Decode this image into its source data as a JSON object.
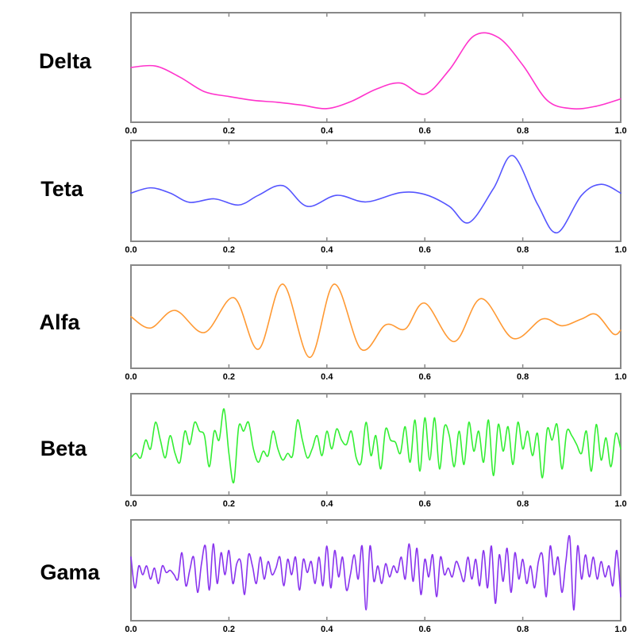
{
  "chart_data": [
    {
      "type": "line",
      "label": "Delta",
      "color": "#ff33cc",
      "xlim": [
        0.0,
        1.0
      ],
      "ylim": [
        -1,
        1
      ],
      "xticks": [
        "0.0",
        "0.2",
        "0.4",
        "0.6",
        "0.8",
        "1.0"
      ],
      "x": [
        0.0,
        0.05,
        0.1,
        0.15,
        0.2,
        0.25,
        0.3,
        0.35,
        0.4,
        0.45,
        0.5,
        0.55,
        0.6,
        0.65,
        0.7,
        0.75,
        0.8,
        0.85,
        0.9,
        0.95,
        1.0
      ],
      "y": [
        0.0,
        0.03,
        -0.2,
        -0.5,
        -0.6,
        -0.68,
        -0.72,
        -0.78,
        -0.85,
        -0.7,
        -0.45,
        -0.32,
        -0.55,
        -0.05,
        0.65,
        0.62,
        0.05,
        -0.68,
        -0.85,
        -0.8,
        -0.65
      ]
    },
    {
      "type": "line",
      "label": "Teta",
      "color": "#5555ff",
      "xlim": [
        0.0,
        1.0
      ],
      "ylim": [
        -1,
        1
      ],
      "xticks": [
        "0.0",
        "0.2",
        "0.4",
        "0.6",
        "0.8",
        "1.0"
      ],
      "x": [
        0.0,
        0.04,
        0.08,
        0.12,
        0.17,
        0.22,
        0.26,
        0.31,
        0.36,
        0.42,
        0.48,
        0.55,
        0.6,
        0.65,
        0.69,
        0.74,
        0.78,
        0.83,
        0.87,
        0.92,
        0.96,
        1.0
      ],
      "y": [
        -0.05,
        0.07,
        -0.05,
        -0.26,
        -0.18,
        -0.32,
        -0.1,
        0.12,
        -0.35,
        -0.1,
        -0.25,
        -0.04,
        -0.08,
        -0.35,
        -0.72,
        0.05,
        0.8,
        -0.3,
        -0.95,
        -0.1,
        0.15,
        -0.05
      ]
    },
    {
      "type": "line",
      "label": "Alfa",
      "color": "#ff9933",
      "xlim": [
        0.0,
        1.0
      ],
      "ylim": [
        -1,
        1
      ],
      "xticks": [
        "0.0",
        "0.2",
        "0.4",
        "0.6",
        "0.8",
        "1.0"
      ],
      "x": [
        0.0,
        0.04,
        0.09,
        0.15,
        0.21,
        0.26,
        0.31,
        0.365,
        0.415,
        0.47,
        0.52,
        0.56,
        0.6,
        0.66,
        0.715,
        0.78,
        0.84,
        0.88,
        0.92,
        0.95,
        0.985,
        1.0
      ],
      "y": [
        0.0,
        -0.25,
        0.14,
        -0.35,
        0.42,
        -0.72,
        0.72,
        -0.9,
        0.72,
        -0.72,
        -0.18,
        -0.27,
        0.3,
        -0.55,
        0.4,
        -0.48,
        -0.05,
        -0.2,
        -0.05,
        0.05,
        -0.38,
        -0.3
      ]
    },
    {
      "type": "line",
      "label": "Beta",
      "color": "#33ee33",
      "xlim": [
        0.0,
        1.0
      ],
      "ylim": [
        -1,
        1
      ],
      "xticks": [
        "0.0",
        "0.2",
        "0.4",
        "0.6",
        "0.8",
        "1.0"
      ],
      "x": [
        0.0,
        0.01,
        0.02,
        0.03,
        0.04,
        0.05,
        0.06,
        0.07,
        0.08,
        0.09,
        0.1,
        0.11,
        0.12,
        0.13,
        0.14,
        0.15,
        0.16,
        0.17,
        0.18,
        0.19,
        0.2,
        0.21,
        0.22,
        0.23,
        0.24,
        0.25,
        0.26,
        0.27,
        0.28,
        0.29,
        0.3,
        0.31,
        0.32,
        0.33,
        0.34,
        0.35,
        0.36,
        0.37,
        0.38,
        0.39,
        0.4,
        0.41,
        0.42,
        0.43,
        0.44,
        0.45,
        0.46,
        0.47,
        0.48,
        0.49,
        0.5,
        0.51,
        0.52,
        0.53,
        0.54,
        0.55,
        0.56,
        0.57,
        0.58,
        0.59,
        0.6,
        0.61,
        0.62,
        0.63,
        0.64,
        0.65,
        0.66,
        0.67,
        0.68,
        0.69,
        0.7,
        0.71,
        0.72,
        0.73,
        0.74,
        0.75,
        0.76,
        0.77,
        0.78,
        0.79,
        0.8,
        0.81,
        0.82,
        0.83,
        0.84,
        0.85,
        0.86,
        0.87,
        0.88,
        0.89,
        0.9,
        0.91,
        0.92,
        0.93,
        0.94,
        0.95,
        0.96,
        0.97,
        0.98,
        0.99,
        1.0
      ],
      "y": [
        -0.3,
        -0.2,
        -0.3,
        0.1,
        -0.1,
        0.5,
        0.1,
        -0.3,
        0.2,
        -0.2,
        -0.4,
        0.3,
        0.0,
        0.5,
        0.3,
        0.2,
        -0.5,
        0.3,
        0.1,
        0.8,
        -0.2,
        -0.85,
        0.4,
        0.3,
        0.5,
        -0.1,
        -0.4,
        -0.15,
        -0.25,
        0.3,
        -0.1,
        -0.35,
        -0.2,
        -0.25,
        0.55,
        0.1,
        -0.3,
        -0.1,
        0.2,
        -0.25,
        0.3,
        -0.1,
        0.35,
        0.1,
        0.0,
        0.3,
        -0.3,
        -0.4,
        0.5,
        -0.25,
        0.2,
        -0.55,
        0.35,
        0.1,
        0.05,
        -0.2,
        0.4,
        -0.4,
        0.55,
        -0.6,
        0.6,
        -0.35,
        0.6,
        -0.55,
        0.4,
        0.2,
        -0.5,
        0.3,
        -0.45,
        0.5,
        -0.15,
        0.3,
        -0.4,
        0.55,
        -0.7,
        0.45,
        -0.15,
        0.4,
        -0.45,
        0.5,
        -0.1,
        0.3,
        -0.25,
        0.25,
        -0.75,
        0.35,
        0.1,
        0.45,
        -0.55,
        0.3,
        0.2,
        0.0,
        -0.2,
        0.3,
        -0.6,
        0.45,
        -0.35,
        0.15,
        -0.5,
        0.25,
        -0.1
      ]
    },
    {
      "type": "line",
      "label": "Gama",
      "color": "#8833ee",
      "xlim": [
        0.0,
        1.0
      ],
      "ylim": [
        -1,
        1
      ],
      "xticks": [
        "0.0",
        "0.2",
        "0.4",
        "0.6",
        "0.8",
        "1.0"
      ],
      "x": [
        0.0,
        0.008,
        0.016,
        0.024,
        0.032,
        0.04,
        0.048,
        0.056,
        0.064,
        0.072,
        0.08,
        0.088,
        0.096,
        0.104,
        0.112,
        0.12,
        0.128,
        0.136,
        0.144,
        0.152,
        0.16,
        0.168,
        0.176,
        0.184,
        0.192,
        0.2,
        0.208,
        0.216,
        0.224,
        0.232,
        0.24,
        0.248,
        0.256,
        0.264,
        0.272,
        0.28,
        0.288,
        0.296,
        0.304,
        0.312,
        0.32,
        0.328,
        0.336,
        0.344,
        0.352,
        0.36,
        0.368,
        0.376,
        0.384,
        0.392,
        0.4,
        0.408,
        0.416,
        0.424,
        0.432,
        0.44,
        0.448,
        0.456,
        0.464,
        0.472,
        0.48,
        0.488,
        0.496,
        0.504,
        0.512,
        0.52,
        0.528,
        0.536,
        0.544,
        0.552,
        0.56,
        0.568,
        0.576,
        0.584,
        0.592,
        0.6,
        0.608,
        0.616,
        0.624,
        0.632,
        0.64,
        0.648,
        0.656,
        0.664,
        0.672,
        0.68,
        0.688,
        0.696,
        0.704,
        0.712,
        0.72,
        0.728,
        0.736,
        0.744,
        0.752,
        0.76,
        0.768,
        0.776,
        0.784,
        0.792,
        0.8,
        0.808,
        0.816,
        0.824,
        0.832,
        0.84,
        0.848,
        0.856,
        0.864,
        0.872,
        0.88,
        0.888,
        0.896,
        0.904,
        0.912,
        0.92,
        0.928,
        0.936,
        0.944,
        0.952,
        0.96,
        0.968,
        0.976,
        0.984,
        0.992,
        1.0
      ],
      "y": [
        0.3,
        -0.4,
        0.1,
        -0.1,
        0.1,
        -0.2,
        0.05,
        -0.3,
        0.1,
        -0.05,
        0.0,
        -0.1,
        -0.2,
        0.4,
        -0.35,
        0.0,
        0.3,
        -0.5,
        0.15,
        0.55,
        -0.45,
        0.6,
        -0.3,
        0.4,
        -0.1,
        0.45,
        -0.3,
        0.15,
        0.2,
        -0.55,
        0.35,
        0.1,
        -0.3,
        0.3,
        -0.2,
        0.2,
        -0.1,
        0.05,
        0.3,
        -0.35,
        0.25,
        -0.1,
        0.3,
        -0.45,
        0.25,
        -0.05,
        0.2,
        -0.3,
        0.3,
        -0.35,
        0.55,
        -0.4,
        0.45,
        -0.15,
        0.3,
        -0.45,
        -0.1,
        0.35,
        -0.2,
        0.55,
        -0.9,
        0.55,
        -0.25,
        0.1,
        -0.3,
        0.15,
        -0.15,
        0.1,
        -0.05,
        0.3,
        -0.2,
        0.6,
        -0.25,
        0.5,
        -0.55,
        0.25,
        -0.15,
        0.35,
        -0.6,
        0.3,
        -0.1,
        0.05,
        -0.15,
        0.2,
        0.0,
        -0.25,
        0.3,
        -0.2,
        0.25,
        -0.35,
        0.45,
        -0.4,
        0.55,
        -0.75,
        0.35,
        -0.25,
        0.5,
        -0.5,
        0.4,
        -0.2,
        0.25,
        -0.3,
        0.1,
        -0.4,
        0.2,
        0.35,
        -0.6,
        0.55,
        -0.1,
        0.3,
        -0.5,
        0.2,
        0.75,
        -0.9,
        0.55,
        -0.2,
        0.35,
        -0.15,
        0.3,
        -0.2,
        0.2,
        -0.15,
        0.1,
        -0.35,
        0.45,
        -0.6
      ]
    }
  ]
}
